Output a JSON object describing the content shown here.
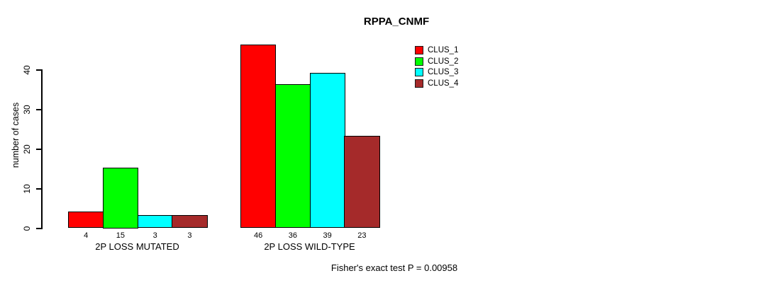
{
  "title": "RPPA_CNMF",
  "y_axis": {
    "label": "number of cases",
    "ticks": [
      0,
      10,
      20,
      30,
      40
    ]
  },
  "footer": "Fisher's exact test P = 0.00958",
  "legend": {
    "items": [
      {
        "label": "CLUS_1",
        "color": "#FF0000"
      },
      {
        "label": "CLUS_2",
        "color": "#00FF00"
      },
      {
        "label": "CLUS_3",
        "color": "#00FFFF"
      },
      {
        "label": "CLUS_4",
        "color": "#A52A2A"
      }
    ]
  },
  "chart_data": {
    "type": "bar",
    "title": "RPPA_CNMF",
    "xlabel": "",
    "ylabel": "number of cases",
    "ylim": [
      0,
      40
    ],
    "y_ticks": [
      0,
      10,
      20,
      30,
      40
    ],
    "grid": false,
    "legend_position": "top-right",
    "categories": [
      "2P LOSS MUTATED",
      "2P LOSS WILD-TYPE"
    ],
    "series": [
      {
        "name": "CLUS_1",
        "color": "#FF0000",
        "values": [
          4,
          46
        ]
      },
      {
        "name": "CLUS_2",
        "color": "#00FF00",
        "values": [
          15,
          36
        ]
      },
      {
        "name": "CLUS_3",
        "color": "#00FFFF",
        "values": [
          3,
          39
        ]
      },
      {
        "name": "CLUS_4",
        "color": "#A52A2A",
        "values": [
          3,
          23
        ]
      }
    ],
    "bar_value_labels": [
      [
        4,
        15,
        3,
        3
      ],
      [
        46,
        36,
        39,
        23
      ]
    ],
    "annotation": "Fisher's exact test P = 0.00958"
  }
}
